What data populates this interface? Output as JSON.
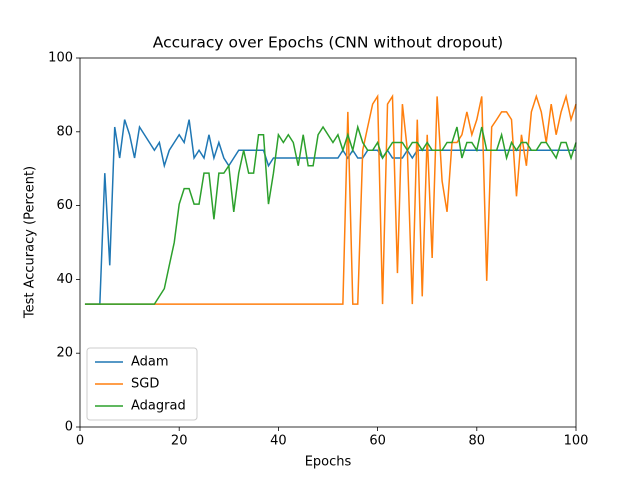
{
  "chart_data": {
    "type": "line",
    "title": "Accuracy over Epochs (CNN without dropout)",
    "x_label": "Epochs",
    "y_label": "Test Accuracy (Percent)",
    "x": [
      1,
      2,
      3,
      4,
      5,
      6,
      7,
      8,
      9,
      10,
      11,
      12,
      13,
      14,
      15,
      16,
      17,
      18,
      19,
      20,
      21,
      22,
      23,
      24,
      25,
      26,
      27,
      28,
      29,
      30,
      31,
      32,
      33,
      34,
      35,
      36,
      37,
      38,
      39,
      40,
      41,
      42,
      43,
      44,
      45,
      46,
      47,
      48,
      49,
      50,
      51,
      52,
      53,
      54,
      55,
      56,
      57,
      58,
      59,
      60,
      61,
      62,
      63,
      64,
      65,
      66,
      67,
      68,
      69,
      70,
      71,
      72,
      73,
      74,
      75,
      76,
      77,
      78,
      79,
      80,
      81,
      82,
      83,
      84,
      85,
      86,
      87,
      88,
      89,
      90,
      91,
      92,
      93,
      94,
      95,
      96,
      97,
      98,
      99,
      100
    ],
    "series": [
      {
        "name": "Adam",
        "color": "#1f77b4",
        "values": [
          33.3,
          33.3,
          33.3,
          33.3,
          68.8,
          43.8,
          81.3,
          72.9,
          83.3,
          79.2,
          72.9,
          81.3,
          79.2,
          77.1,
          75,
          77.1,
          70.8,
          75,
          77.1,
          79.2,
          77.1,
          83.3,
          72.9,
          75,
          72.9,
          79.2,
          72.9,
          77.1,
          72.9,
          70.8,
          72.9,
          75,
          75,
          75,
          75,
          75,
          75,
          70.8,
          72.9,
          72.9,
          72.9,
          72.9,
          72.9,
          72.9,
          72.9,
          72.9,
          72.9,
          72.9,
          72.9,
          72.9,
          72.9,
          72.9,
          75,
          72.9,
          75,
          72.9,
          72.9,
          75,
          75,
          75,
          72.9,
          75,
          72.9,
          72.9,
          72.9,
          75,
          72.9,
          75,
          75,
          75,
          75,
          75,
          75,
          75,
          75,
          75,
          75,
          75,
          75,
          75,
          75,
          75,
          75,
          75,
          75,
          75,
          75,
          75,
          75,
          75,
          75,
          75,
          75,
          75,
          75,
          75,
          75,
          75,
          75,
          75
        ]
      },
      {
        "name": "SGD",
        "color": "#ff7f0e",
        "values": [
          33.3,
          33.3,
          33.3,
          33.3,
          33.3,
          33.3,
          33.3,
          33.3,
          33.3,
          33.3,
          33.3,
          33.3,
          33.3,
          33.3,
          33.3,
          33.3,
          33.3,
          33.3,
          33.3,
          33.3,
          33.3,
          33.3,
          33.3,
          33.3,
          33.3,
          33.3,
          33.3,
          33.3,
          33.3,
          33.3,
          33.3,
          33.3,
          33.3,
          33.3,
          33.3,
          33.3,
          33.3,
          33.3,
          33.3,
          33.3,
          33.3,
          33.3,
          33.3,
          33.3,
          33.3,
          33.3,
          33.3,
          33.3,
          33.3,
          33.3,
          33.3,
          33.3,
          33.3,
          85.4,
          33.3,
          33.3,
          75,
          81.3,
          87.5,
          89.6,
          33.3,
          87.5,
          89.6,
          41.7,
          87.5,
          75,
          33.3,
          83.3,
          35.4,
          79.2,
          45.8,
          89.6,
          66.7,
          58.3,
          77.1,
          77.1,
          79.2,
          85.4,
          79.2,
          83.3,
          89.6,
          39.6,
          81.3,
          83.3,
          85.4,
          85.4,
          83.3,
          62.5,
          79.2,
          70.8,
          85.4,
          89.6,
          85.4,
          77.1,
          87.5,
          79.2,
          85.4,
          89.6,
          83.3,
          87.5
        ]
      },
      {
        "name": "Adagrad",
        "color": "#2ca02c",
        "values": [
          33.3,
          33.3,
          33.3,
          33.3,
          33.3,
          33.3,
          33.3,
          33.3,
          33.3,
          33.3,
          33.3,
          33.3,
          33.3,
          33.3,
          33.3,
          35.4,
          37.5,
          43.8,
          50,
          60.4,
          64.6,
          64.6,
          60.4,
          60.4,
          68.8,
          68.8,
          56.3,
          68.8,
          68.8,
          70.8,
          58.3,
          68.8,
          75,
          68.8,
          68.8,
          79.2,
          79.2,
          60.4,
          68.8,
          79.2,
          77.1,
          79.2,
          77.1,
          70.8,
          79.2,
          70.8,
          70.8,
          79.2,
          81.3,
          79.2,
          77.1,
          79.2,
          75,
          79.2,
          75,
          81.3,
          77.1,
          75,
          75,
          77.1,
          72.9,
          75,
          77.1,
          77.1,
          77.1,
          75,
          77.1,
          77.1,
          75,
          77.1,
          75,
          75,
          75,
          77.1,
          77.1,
          81.3,
          72.9,
          77.1,
          77.1,
          75,
          81.3,
          75,
          75,
          75,
          79.2,
          72.9,
          77.1,
          75,
          77.1,
          77.1,
          75,
          75,
          77.1,
          77.1,
          75,
          72.9,
          77.1,
          77.1,
          72.9,
          77.1
        ]
      }
    ],
    "xlim": [
      0,
      100
    ],
    "xticks": [
      0,
      20,
      40,
      60,
      80,
      100
    ],
    "ylim": [
      0,
      100
    ],
    "yticks": [
      0,
      20,
      40,
      60,
      80,
      100
    ],
    "legend": "lower left"
  }
}
